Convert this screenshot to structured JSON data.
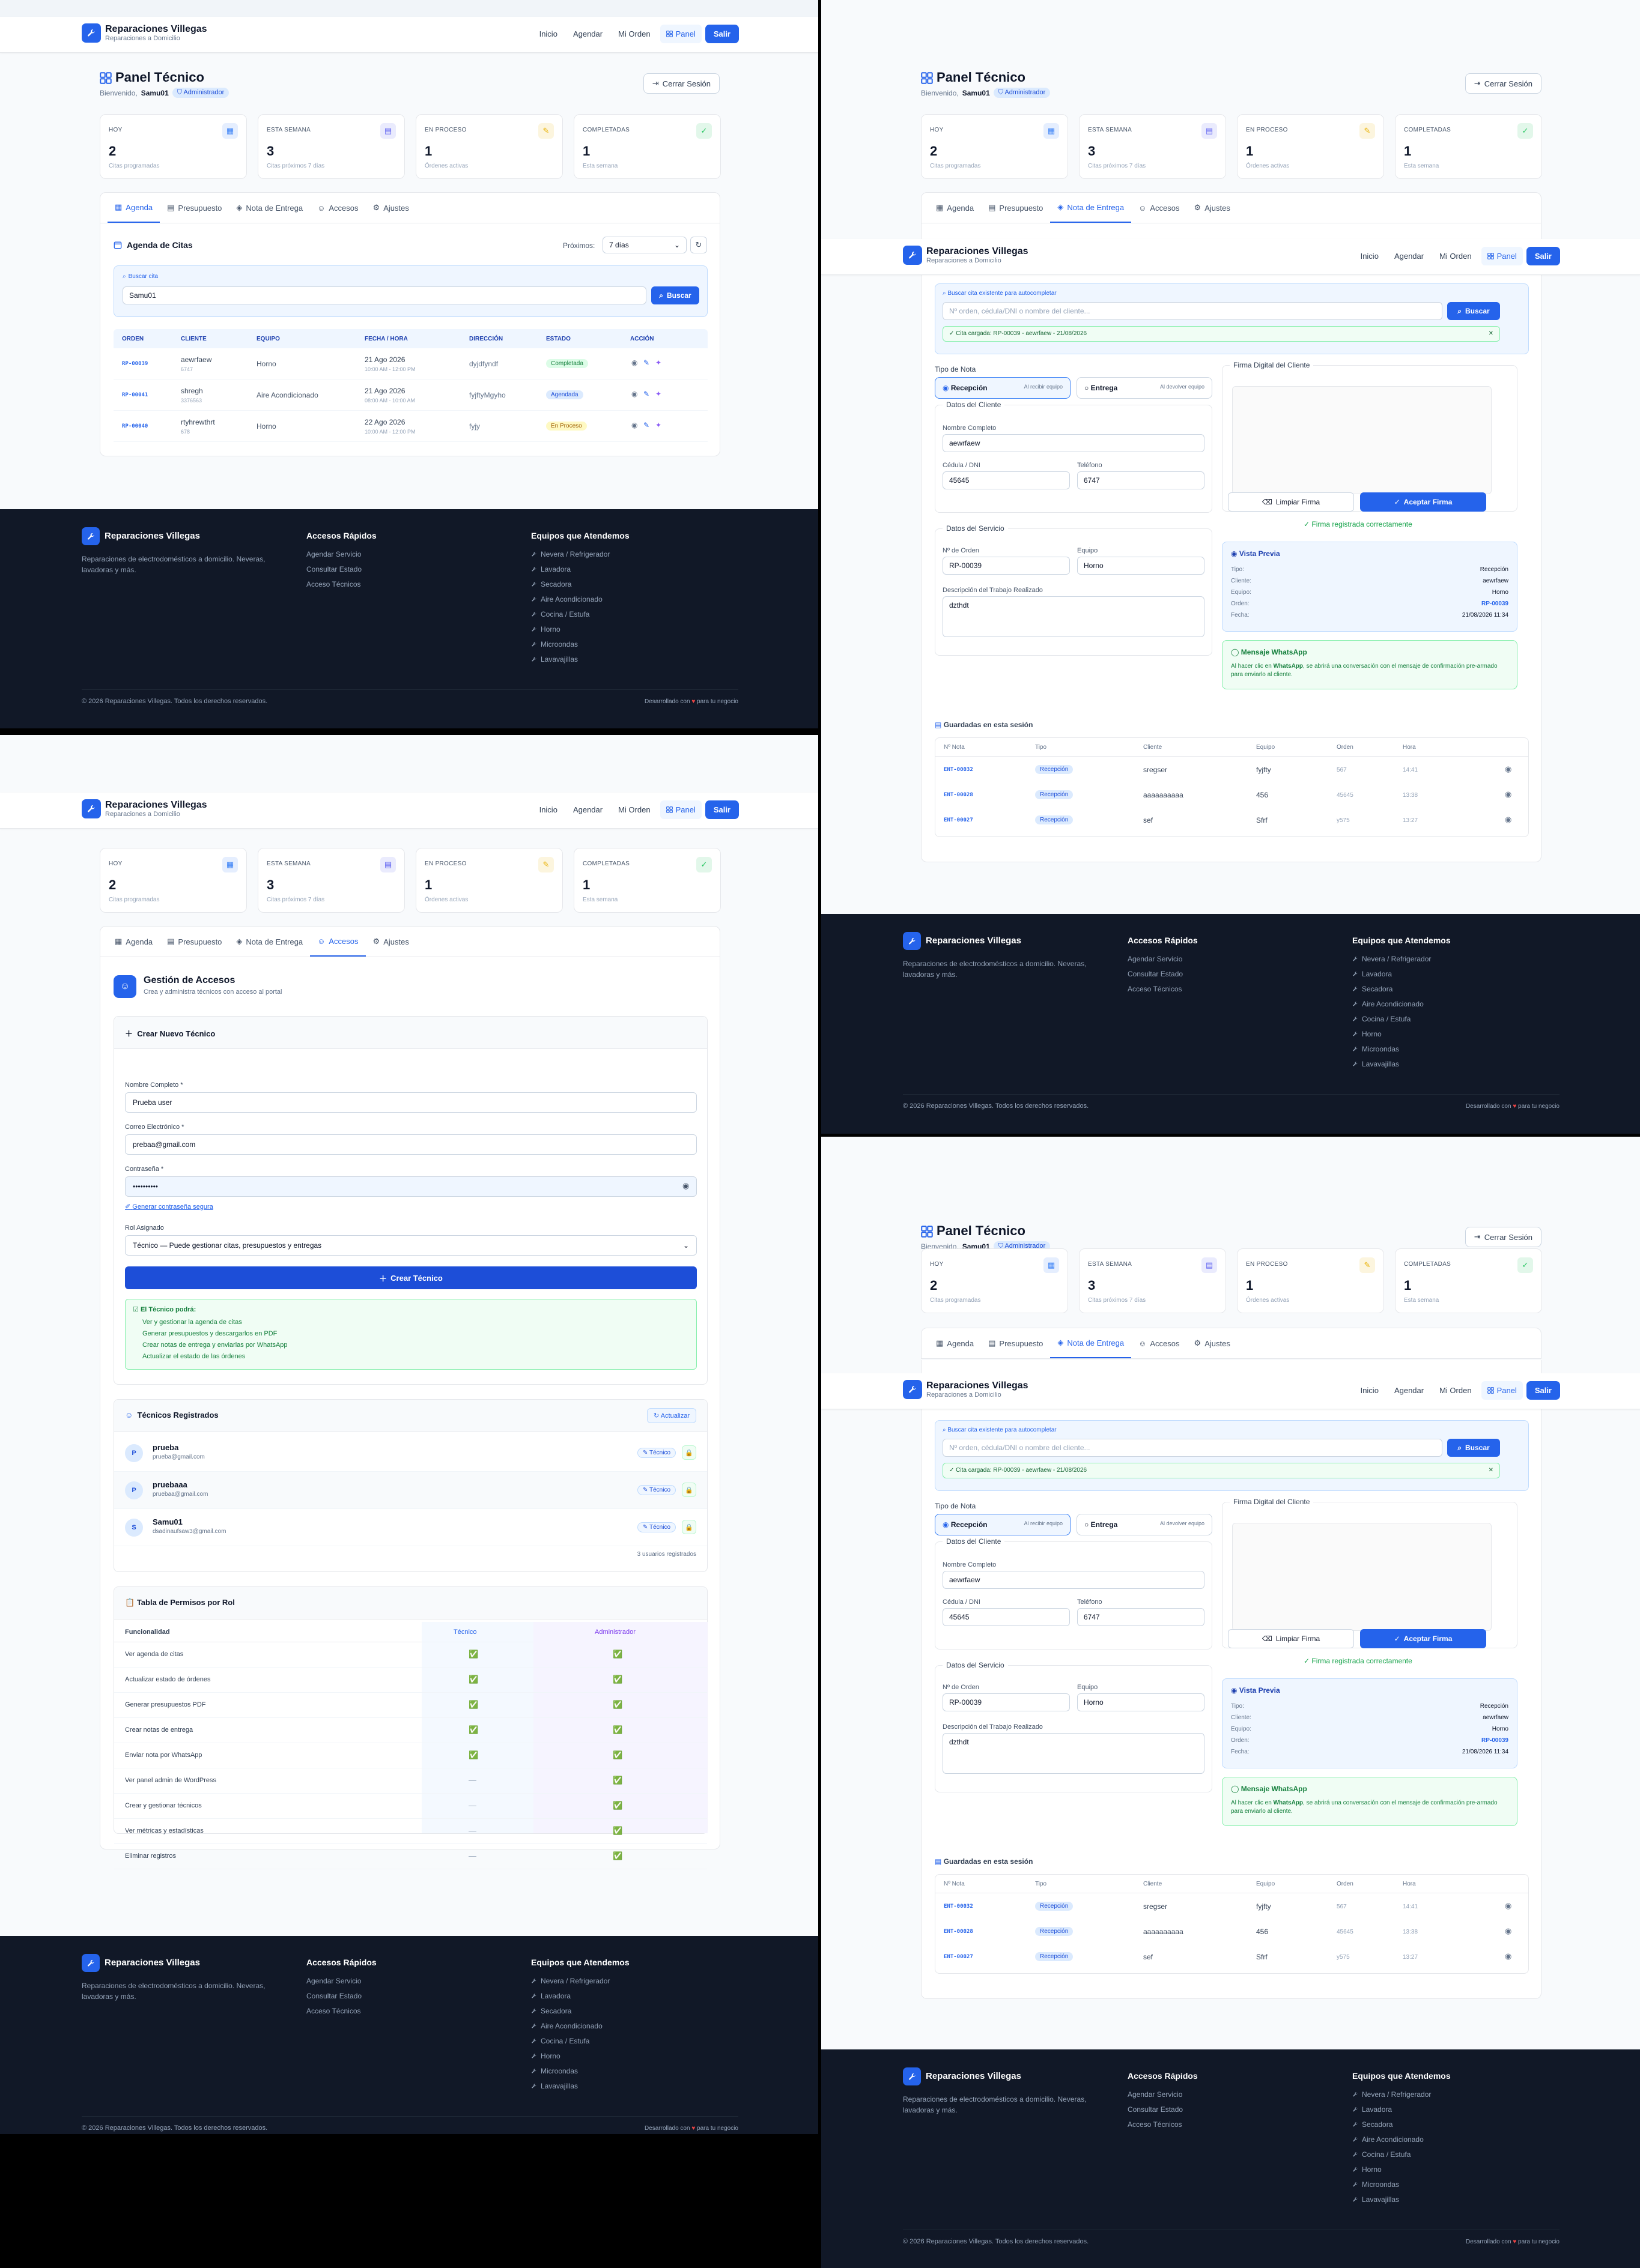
{
  "header": {
    "brand": "Reparaciones Villegas",
    "tagline": "Reparaciones a Domicilio",
    "nav": [
      "Inicio",
      "Agendar",
      "Mi Orden",
      "Panel"
    ],
    "salir": "Salir"
  },
  "panel": {
    "title": "Panel Técnico",
    "welcome": "Bienvenido,",
    "user": "Samu01",
    "role": "Administrador",
    "logout": "Cerrar Sesión"
  },
  "stats": [
    {
      "label": "HOY",
      "value": "2",
      "sub": "Citas programadas",
      "icon": "calendar-icon",
      "color": "#3b82f6"
    },
    {
      "label": "ESTA SEMANA",
      "value": "3",
      "sub": "Citas próximos 7 días",
      "icon": "calendar-week-icon",
      "color": "#6366f1"
    },
    {
      "label": "EN PROCESO",
      "value": "1",
      "sub": "Órdenes activas",
      "icon": "wrench-icon",
      "color": "#eab308"
    },
    {
      "label": "COMPLETADAS",
      "value": "1",
      "sub": "Esta semana",
      "icon": "check-circle-icon",
      "color": "#22c55e"
    }
  ],
  "tabs": [
    "Agenda",
    "Presupuesto",
    "Nota de Entrega",
    "Accesos",
    "Ajustes"
  ],
  "agenda": {
    "title": "Agenda de Citas",
    "proximos_label": "Próximos:",
    "proximos_value": "7 días",
    "search_label": "Buscar cita",
    "search_value": "Samu01",
    "search_button": "Buscar",
    "columns": [
      "ORDEN",
      "CLIENTE",
      "EQUIPO",
      "FECHA / HORA",
      "DIRECCIÓN",
      "ESTADO",
      "ACCIÓN"
    ],
    "rows": [
      {
        "orden": "RP-00039",
        "cliente": "aewrfaew",
        "tel": "6747",
        "equipo": "Horno",
        "fecha": "21 Ago 2026",
        "hora": "10:00 AM - 12:00 PM",
        "dir": "dyjdfyndf",
        "estado": "Completada"
      },
      {
        "orden": "RP-00041",
        "cliente": "shregh",
        "tel": "3376563",
        "equipo": "Aire Acondicionado",
        "fecha": "21 Ago 2026",
        "hora": "08:00 AM - 10:00 AM",
        "dir": "fyjftyMgyho",
        "estado": "Agendada"
      },
      {
        "orden": "RP-00040",
        "cliente": "rtyhrewthrt",
        "tel": "678",
        "equipo": "Horno",
        "fecha": "22 Ago 2026",
        "hora": "10:00 AM - 12:00 PM",
        "dir": "fyjy",
        "estado": "En Proceso"
      }
    ]
  },
  "nota": {
    "search_label": "Buscar cita existente para autocompletar",
    "search_placeholder": "Nº orden, cédula/DNI o nombre del cliente...",
    "search_button": "Buscar",
    "loaded": "Cita cargada: RP-00039 - aewrfaew - 21/08/2026",
    "tipo_label": "Tipo de Nota",
    "tipo_recepcion": "Recepción",
    "tipo_recepcion_sub": "Al recibir equipo",
    "tipo_entrega": "Entrega",
    "tipo_entrega_sub": "Al devolver equipo",
    "cliente_title": "Datos del Cliente",
    "nombre_label": "Nombre Completo",
    "nombre": "aewrfaew",
    "cedula_label": "Cédula / DNI",
    "cedula": "45645",
    "telefono_label": "Teléfono",
    "telefono": "6747",
    "servicio_title": "Datos del Servicio",
    "orden_label": "Nº de Orden",
    "orden": "RP-00039",
    "equipo_label": "Equipo",
    "equipo": "Horno",
    "desc_label": "Descripción del Trabajo Realizado",
    "desc": "dzthdt",
    "firma_title": "Firma Digital del Cliente",
    "limpiar": "Limpiar Firma",
    "aceptar": "Aceptar Firma",
    "firma_ok": "Firma registrada correctamente",
    "preview_title": "Vista Previa",
    "preview": [
      [
        "Tipo:",
        "Recepción"
      ],
      [
        "Cliente:",
        "aewrfaew"
      ],
      [
        "Equipo:",
        "Horno"
      ],
      [
        "Orden:",
        "RP-00039"
      ],
      [
        "Fecha:",
        "21/08/2026 11:34"
      ]
    ],
    "wa_title": "Mensaje WhatsApp",
    "wa_text1": "Al hacer clic en ",
    "wa_bold": "WhatsApp",
    "wa_text2": ", se abrirá una conversación con el mensaje de confirmación pre-armado para enviarlo al cliente.",
    "saved_title": "Guardadas en esta sesión",
    "saved_cols": [
      "Nº Nota",
      "Tipo",
      "Cliente",
      "Equipo",
      "Orden",
      "Hora"
    ],
    "saved": [
      [
        "ENT-00032",
        "Recepción",
        "sregser",
        "fyjfty",
        "567",
        "14:41"
      ],
      [
        "ENT-00028",
        "Recepción",
        "aaaaaaaaaa",
        "456",
        "45645",
        "13:38"
      ],
      [
        "ENT-00027",
        "Recepción",
        "sef",
        "Sfrf",
        "y575",
        "13:27"
      ]
    ]
  },
  "accesos": {
    "title": "Gestión de Accesos",
    "subtitle": "Crea y administra técnicos con acceso al portal",
    "create_title": "Crear Nuevo Técnico",
    "nombre_label": "Nombre Completo *",
    "nombre": "Prueba user",
    "correo_label": "Correo Electrónico *",
    "correo": "prebaa@gmail.com",
    "pass_label": "Contraseña *",
    "pass": "••••••••••",
    "gen_pass": "Generar contraseña segura",
    "rol_label": "Rol Asignado",
    "rol": "Técnico — Puede gestionar citas, presupuestos y entregas",
    "create_btn": "Crear Técnico",
    "can_title": "El Técnico podrá:",
    "can": [
      "Ver y gestionar la agenda de citas",
      "Generar presupuestos y descargarlos en PDF",
      "Crear notas de entrega y enviarlas por WhatsApp",
      "Actualizar el estado de las órdenes"
    ],
    "reg_title": "Técnicos Registrados",
    "refresh": "Actualizar",
    "users": [
      {
        "initial": "P",
        "name": "prueba",
        "email": "prueba@gmail.com",
        "role": "Técnico"
      },
      {
        "initial": "P",
        "name": "pruebaaa",
        "email": "pruebaa@gmail.com",
        "role": "Técnico"
      },
      {
        "initial": "S",
        "name": "Samu01",
        "email": "dsadinaufsaw3@gmail.com",
        "role": "Técnico"
      }
    ],
    "count": "3 usuarios registrados",
    "perm_title": "Tabla de Permisos por Rol",
    "perm_cols": [
      "Funcionalidad",
      "Técnico",
      "Administrador"
    ],
    "perms": [
      [
        "Ver agenda de citas",
        true
      ],
      [
        "Actualizar estado de órdenes",
        true
      ],
      [
        "Generar presupuestos PDF",
        true
      ],
      [
        "Crear notas de entrega",
        true
      ],
      [
        "Enviar nota por WhatsApp",
        true
      ],
      [
        "Ver panel admin de WordPress",
        false
      ],
      [
        "Crear y gestionar técnicos",
        false
      ],
      [
        "Ver métricas y estadísticas",
        false
      ],
      [
        "Eliminar registros",
        false
      ]
    ]
  },
  "footer": {
    "brand": "Reparaciones Villegas",
    "desc": "Reparaciones de electrodomésticos a domicilio. Neveras, lavadoras y más.",
    "quick_title": "Accesos Rápidos",
    "quick": [
      "Agendar Servicio",
      "Consultar Estado",
      "Acceso Técnicos"
    ],
    "equip_title": "Equipos que Atendemos",
    "equip": [
      "Nevera / Refrigerador",
      "Lavadora",
      "Secadora",
      "Aire Acondicionado",
      "Cocina / Estufa",
      "Horno",
      "Microondas",
      "Lavavajillas"
    ],
    "copy": "© 2026 Reparaciones Villegas. Todos los derechos reservados.",
    "dev1": "Desarrollado con",
    "dev2": "para tu negocio"
  }
}
